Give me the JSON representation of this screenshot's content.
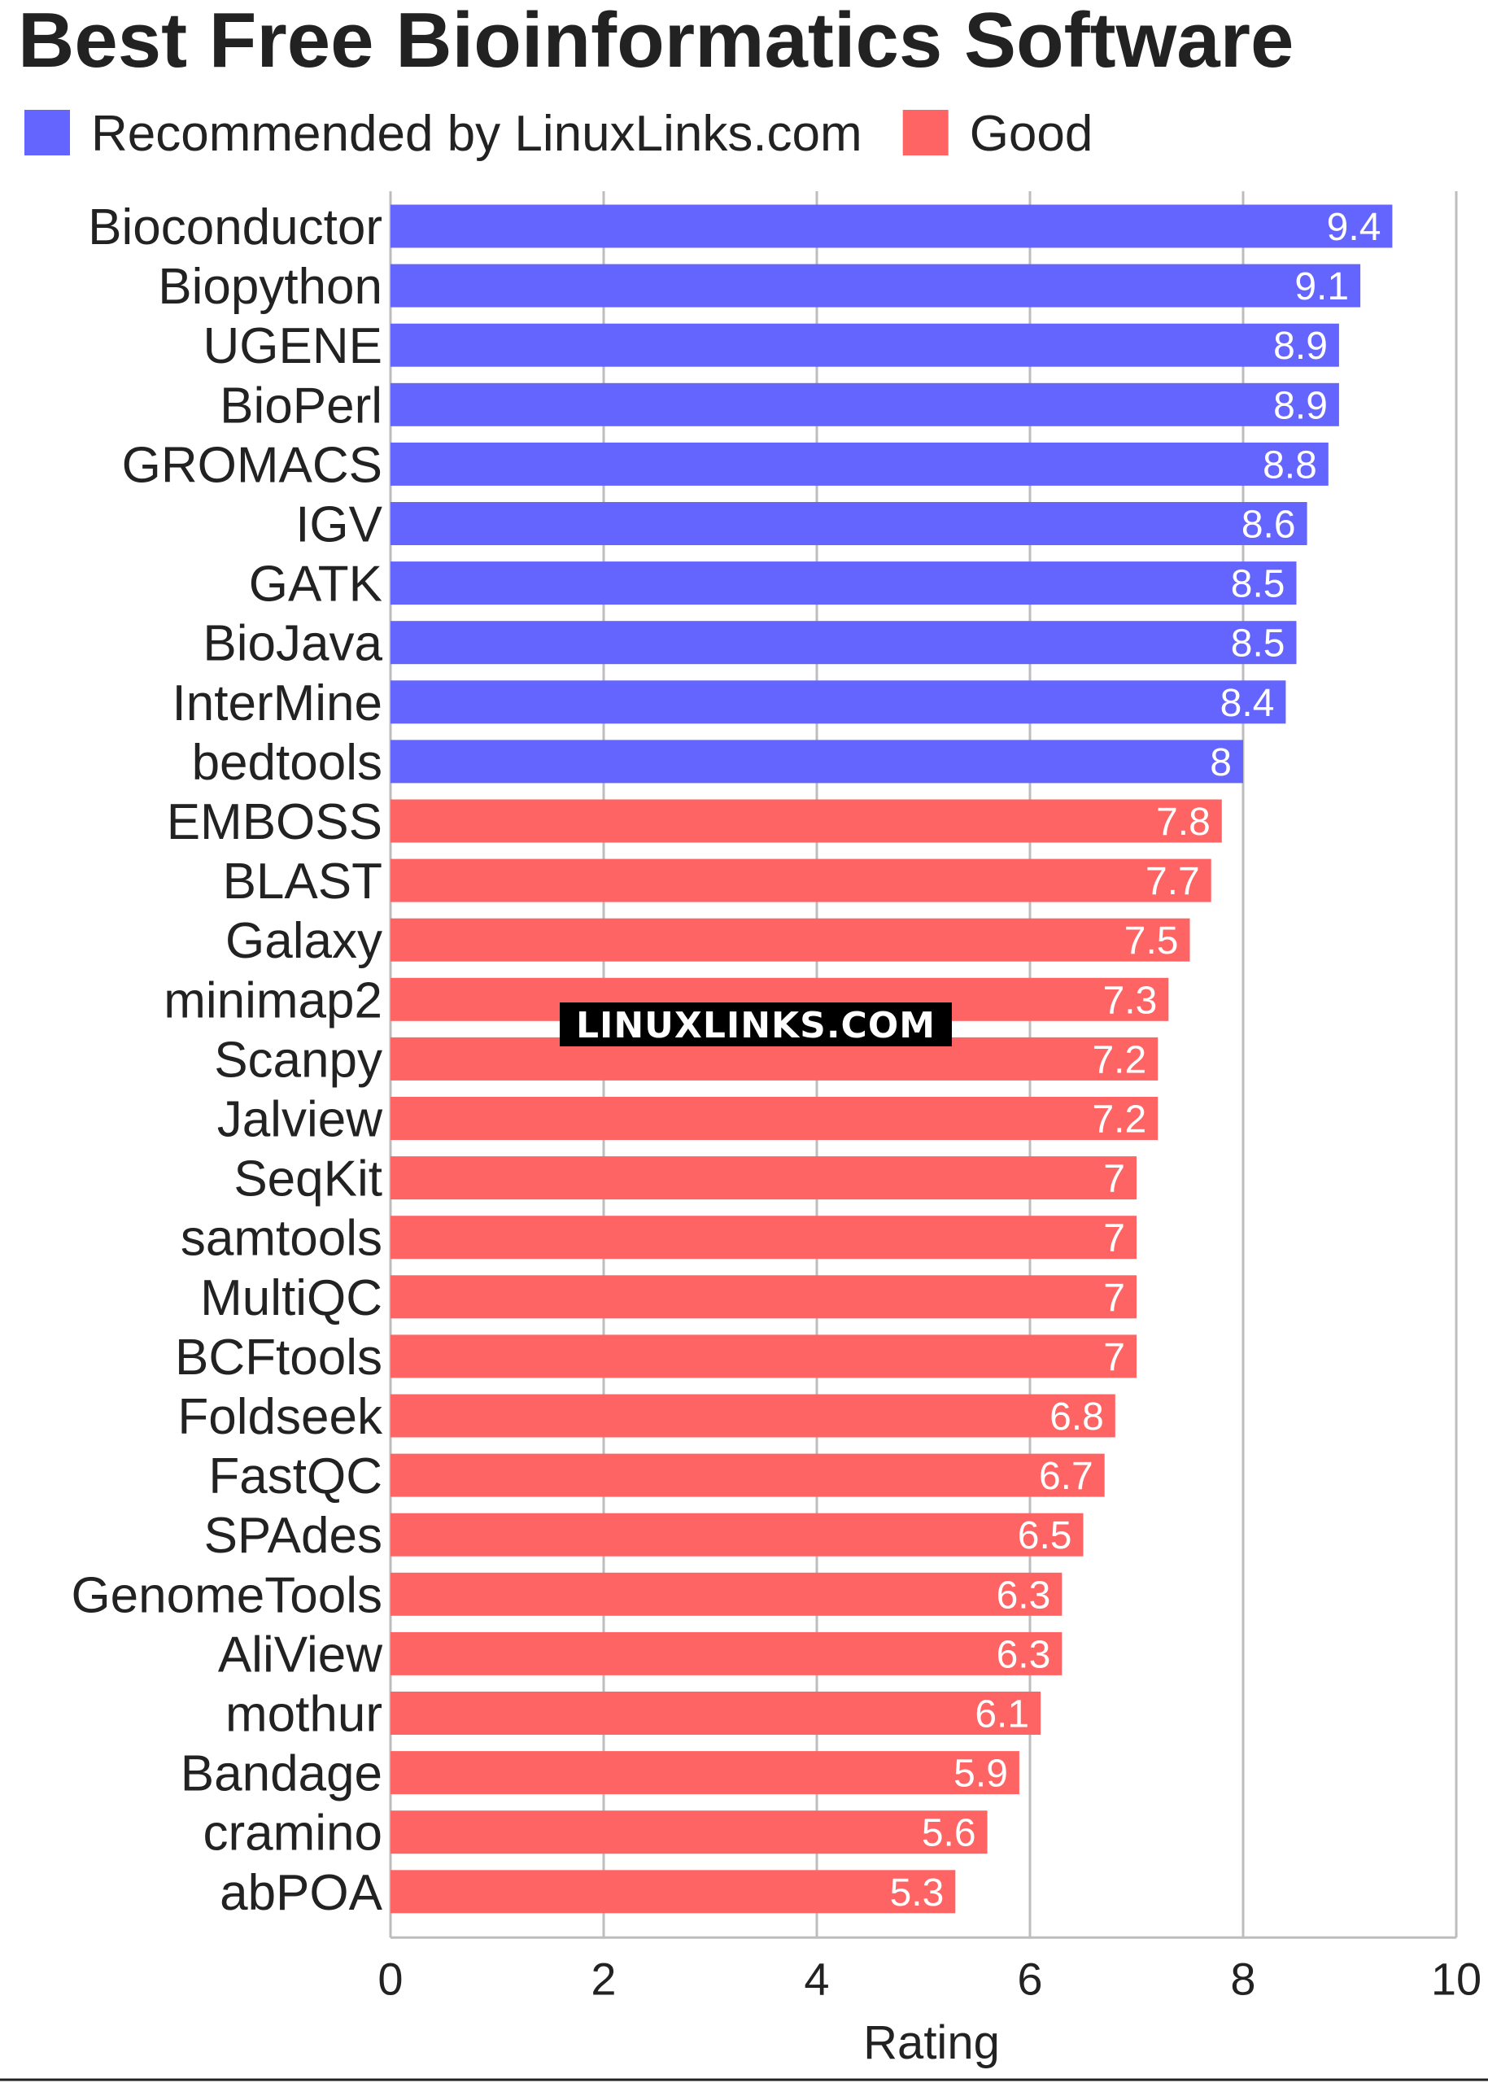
{
  "chart_data": {
    "type": "bar",
    "orientation": "horizontal",
    "title": "Best Free Bioinformatics Software",
    "xlabel": "Rating",
    "ylabel": "",
    "xlim": [
      0,
      10
    ],
    "ticks": [
      0,
      2,
      4,
      6,
      8,
      10
    ],
    "grid": true,
    "legend_position": "top-left",
    "legend": [
      {
        "name": "Recommended by LinuxLinks.com",
        "color": "#6464ff"
      },
      {
        "name": "Good",
        "color": "#ff6464"
      }
    ],
    "categories": [
      "Bioconductor",
      "Biopython",
      "UGENE",
      "BioPerl",
      "GROMACS",
      "IGV",
      "GATK",
      "BioJava",
      "InterMine",
      "bedtools",
      "EMBOSS",
      "BLAST",
      "Galaxy",
      "minimap2",
      "Scanpy",
      "Jalview",
      "SeqKit",
      "samtools",
      "MultiQC",
      "BCFtools",
      "Foldseek",
      "FastQC",
      "SPAdes",
      "GenomeTools",
      "AliView",
      "mothur",
      "Bandage",
      "cramino",
      "abPOA"
    ],
    "values": [
      9.4,
      9.1,
      8.9,
      8.9,
      8.8,
      8.6,
      8.5,
      8.5,
      8.4,
      8,
      7.8,
      7.7,
      7.5,
      7.3,
      7.2,
      7.2,
      7,
      7,
      7,
      7,
      6.8,
      6.7,
      6.5,
      6.3,
      6.3,
      6.1,
      5.9,
      5.6,
      5.3
    ],
    "value_labels": [
      "9.4",
      "9.1",
      "8.9",
      "8.9",
      "8.8",
      "8.6",
      "8.5",
      "8.5",
      "8.4",
      "8",
      "7.8",
      "7.7",
      "7.5",
      "7.3",
      "7.2",
      "7.2",
      "7",
      "7",
      "7",
      "7",
      "6.8",
      "6.7",
      "6.5",
      "6.3",
      "6.3",
      "6.1",
      "5.9",
      "5.6",
      "5.3"
    ],
    "groups": [
      "Recommended by LinuxLinks.com",
      "Recommended by LinuxLinks.com",
      "Recommended by LinuxLinks.com",
      "Recommended by LinuxLinks.com",
      "Recommended by LinuxLinks.com",
      "Recommended by LinuxLinks.com",
      "Recommended by LinuxLinks.com",
      "Recommended by LinuxLinks.com",
      "Recommended by LinuxLinks.com",
      "Recommended by LinuxLinks.com",
      "Good",
      "Good",
      "Good",
      "Good",
      "Good",
      "Good",
      "Good",
      "Good",
      "Good",
      "Good",
      "Good",
      "Good",
      "Good",
      "Good",
      "Good",
      "Good",
      "Good",
      "Good",
      "Good"
    ]
  },
  "watermark": "LINUXLINKS.COM"
}
